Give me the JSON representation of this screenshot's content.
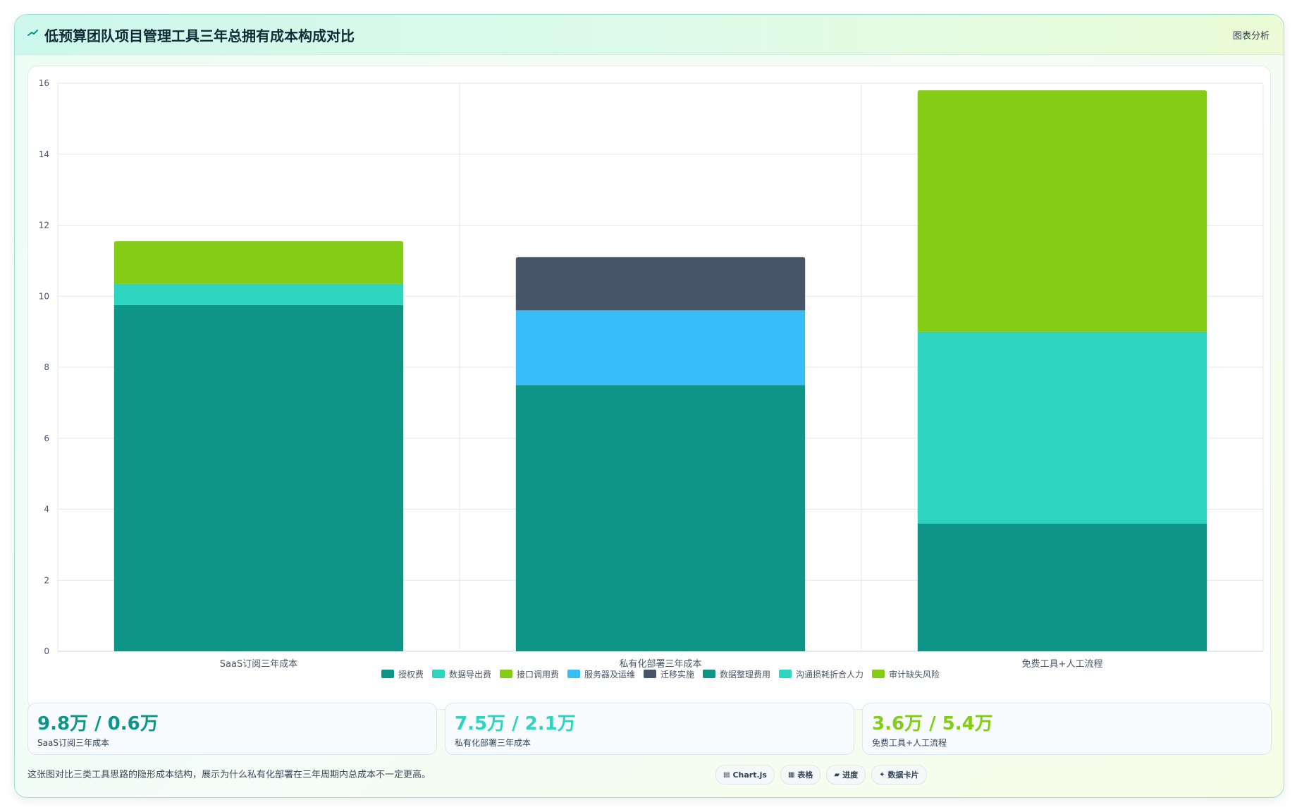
{
  "header": {
    "title": "低预算团队项目管理工具三年总拥有成本构成对比",
    "right_label": "图表分析"
  },
  "chart_data": {
    "type": "bar",
    "stacked": true,
    "categories": [
      "SaaS订阅三年成本",
      "私有化部署三年成本",
      "免费工具+人工流程"
    ],
    "series": [
      {
        "name": "授权费",
        "color": "#0f9488",
        "values": [
          9.75,
          0,
          0
        ]
      },
      {
        "name": "数据导出费",
        "color": "#2dd4bf",
        "values": [
          0.6,
          0,
          0
        ]
      },
      {
        "name": "接口调用费",
        "color": "#84cc16",
        "values": [
          1.2,
          0,
          0
        ]
      },
      {
        "name": "服务器及运维",
        "color": "#38bdf8",
        "values": [
          0,
          0,
          0
        ]
      },
      {
        "name": "迁移实施",
        "color": "#475569",
        "values": [
          0,
          0,
          0
        ]
      },
      {
        "name": "授权费",
        "color": "#0f9488",
        "values": [
          0,
          7.5,
          0
        ]
      },
      {
        "name": "服务器及运维",
        "color": "#38bdf8",
        "values": [
          0,
          2.1,
          0
        ]
      },
      {
        "name": "迁移实施",
        "color": "#475569",
        "values": [
          0,
          1.5,
          0
        ]
      },
      {
        "name": "数据整理费用",
        "color": "#0f9488",
        "values": [
          0,
          0,
          3.6
        ]
      },
      {
        "name": "沟通损耗折合人力",
        "color": "#2dd4bf",
        "values": [
          0,
          0,
          5.4
        ]
      },
      {
        "name": "审计缺失风险",
        "color": "#84cc16",
        "values": [
          0,
          0,
          6.8
        ]
      }
    ],
    "legend": [
      {
        "name": "授权费",
        "color": "#0f9488"
      },
      {
        "name": "数据导出费",
        "color": "#2dd4bf"
      },
      {
        "name": "接口调用费",
        "color": "#84cc16"
      },
      {
        "name": "服务器及运维",
        "color": "#38bdf8"
      },
      {
        "name": "迁移实施",
        "color": "#475569"
      },
      {
        "name": "数据整理费用",
        "color": "#0f9488"
      },
      {
        "name": "沟通损耗折合人力",
        "color": "#2dd4bf"
      },
      {
        "name": "审计缺失风险",
        "color": "#84cc16"
      }
    ],
    "legend_position": "bottom",
    "ylim": [
      0,
      16
    ],
    "yticks": [
      0,
      2,
      4,
      6,
      8,
      10,
      12,
      14,
      16
    ],
    "grid": true
  },
  "stats": [
    {
      "value": "9.8万 / 0.6万",
      "label": "SaaS订阅三年成本",
      "color": "#0f9488"
    },
    {
      "value": "7.5万 / 2.1万",
      "label": "私有化部署三年成本",
      "color": "#2dd4bf"
    },
    {
      "value": "3.6万 / 5.4万",
      "label": "免费工具+人工流程",
      "color": "#84cc16"
    }
  ],
  "footnote": "这张图对比三类工具思路的隐形成本结构，展示为什么私有化部署在三年周期内总成本不一定更高。",
  "tags": [
    {
      "icon": "▤",
      "label": "Chart.js"
    },
    {
      "icon": "▦",
      "label": "表格"
    },
    {
      "icon": "▰",
      "label": "进度"
    },
    {
      "icon": "✦",
      "label": "数据卡片"
    }
  ],
  "colors": {
    "accent": "#0f9488",
    "teal_light": "#2dd4bf",
    "lime": "#84cc16",
    "sky": "#38bdf8",
    "slate": "#475569"
  }
}
